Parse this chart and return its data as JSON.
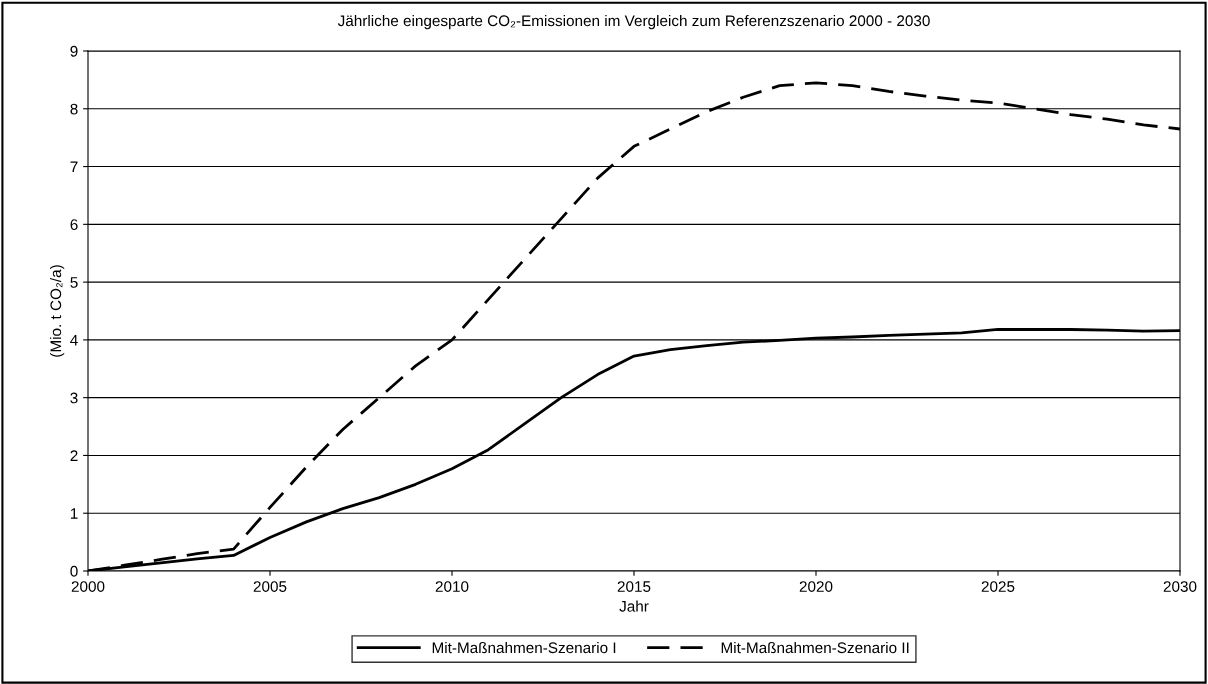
{
  "chart_data": {
    "type": "line",
    "title": "Jährliche eingesparte CO₂-Emissionen im Vergleich zum Referenzszenario 2000 - 2030",
    "xlabel": "Jahr",
    "ylabel": "(Mio. t CO₂/a)",
    "x": [
      2000,
      2001,
      2002,
      2003,
      2004,
      2005,
      2006,
      2007,
      2008,
      2009,
      2010,
      2011,
      2012,
      2013,
      2014,
      2015,
      2016,
      2017,
      2018,
      2019,
      2020,
      2021,
      2022,
      2023,
      2024,
      2025,
      2026,
      2027,
      2028,
      2029,
      2030
    ],
    "series": [
      {
        "name": "Mit-Maßnahmen-Szenario I",
        "color": "#000000",
        "line_style": "solid",
        "values": [
          0,
          0.07,
          0.14,
          0.21,
          0.27,
          0.58,
          0.85,
          1.08,
          1.27,
          1.5,
          1.77,
          2.1,
          2.55,
          3.0,
          3.4,
          3.72,
          3.83,
          3.9,
          3.96,
          3.99,
          4.03,
          4.05,
          4.08,
          4.1,
          4.12,
          4.18,
          4.18,
          4.18,
          4.17,
          4.15,
          4.16
        ]
      },
      {
        "name": "Mit-Maßnahmen-Szenario II",
        "color": "#000000",
        "line_style": "dashed",
        "values": [
          0,
          0.1,
          0.2,
          0.3,
          0.38,
          1.1,
          1.8,
          2.45,
          3.0,
          3.55,
          4.0,
          4.7,
          5.4,
          6.1,
          6.8,
          7.35,
          7.65,
          7.95,
          8.2,
          8.4,
          8.45,
          8.4,
          8.3,
          8.22,
          8.15,
          8.1,
          8.0,
          7.9,
          7.82,
          7.72,
          7.65
        ]
      }
    ],
    "xlim": [
      2000,
      2030
    ],
    "xticks": [
      2000,
      2005,
      2010,
      2015,
      2020,
      2025,
      2030
    ],
    "ylim": [
      0,
      9
    ],
    "yticks": [
      0,
      1,
      2,
      3,
      4,
      5,
      6,
      7,
      8,
      9
    ],
    "grid": "y",
    "legend": "bottom",
    "marker": "none"
  }
}
